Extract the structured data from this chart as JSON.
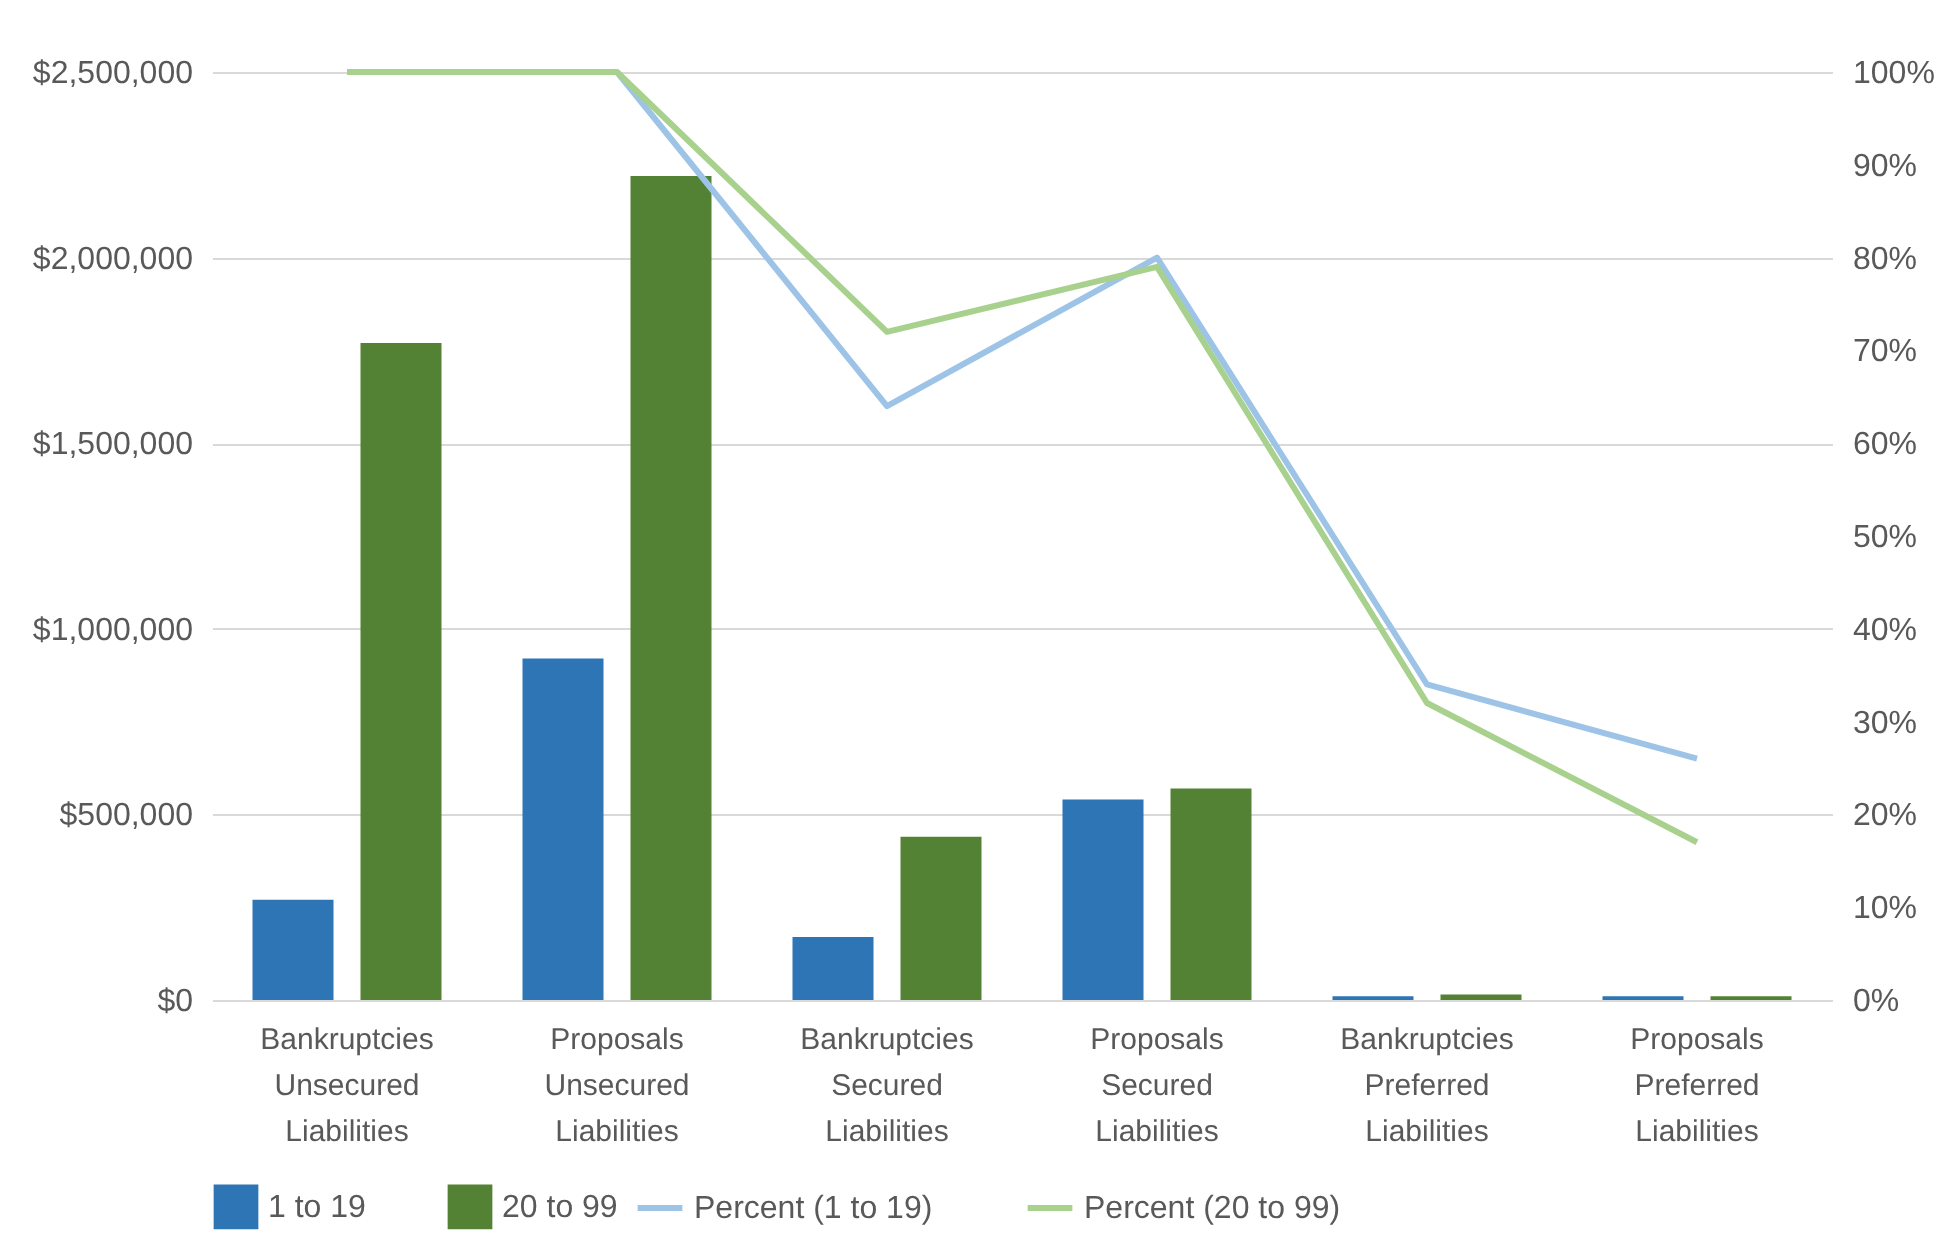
{
  "chart_data": {
    "type": "bar",
    "categories": [
      "Bankruptcies Unsecured Liabilities",
      "Proposals Unsecured Liabilities",
      "Bankruptcies Secured Liabilities",
      "Proposals Secured Liabilities",
      "Bankruptcies Preferred Liabilities",
      "Proposals Preferred Liabilities"
    ],
    "series": [
      {
        "name": "1 to 19",
        "color": "#2e75b6",
        "values": [
          270000,
          920000,
          170000,
          540000,
          10000,
          10000
        ]
      },
      {
        "name": "20 to 99",
        "color": "#548235",
        "values": [
          1770000,
          2220000,
          440000,
          570000,
          15000,
          10000
        ]
      },
      {
        "name": "Percent (1 to 19)",
        "type": "line",
        "axis": "y2",
        "color": "#9dc3e6",
        "values": [
          null,
          100,
          64,
          80,
          34,
          26
        ]
      },
      {
        "name": "Percent (20 to 99)",
        "type": "line",
        "axis": "y2",
        "color": "#a9d18e",
        "values": [
          100,
          100,
          72,
          79,
          32,
          17
        ]
      }
    ],
    "ylim": [
      0,
      2500000
    ],
    "yticks": [
      {
        "value": 0,
        "label": "$0"
      },
      {
        "value": 500000,
        "label": "$500,000"
      },
      {
        "value": 1000000,
        "label": "$1,000,000"
      },
      {
        "value": 1500000,
        "label": "$1,500,000"
      },
      {
        "value": 2000000,
        "label": "$2,000,000"
      },
      {
        "value": 2500000,
        "label": "$2,500,000"
      }
    ],
    "y2lim": [
      0,
      100
    ],
    "y2ticks": [
      {
        "value": 0,
        "label": "0%"
      },
      {
        "value": 10,
        "label": "10%"
      },
      {
        "value": 20,
        "label": "20%"
      },
      {
        "value": 30,
        "label": "30%"
      },
      {
        "value": 40,
        "label": "40%"
      },
      {
        "value": 50,
        "label": "50%"
      },
      {
        "value": 60,
        "label": "60%"
      },
      {
        "value": 70,
        "label": "70%"
      },
      {
        "value": 80,
        "label": "80%"
      },
      {
        "value": 90,
        "label": "90%"
      },
      {
        "value": 100,
        "label": "100%"
      }
    ],
    "grid": "y",
    "legend": "bottom"
  }
}
